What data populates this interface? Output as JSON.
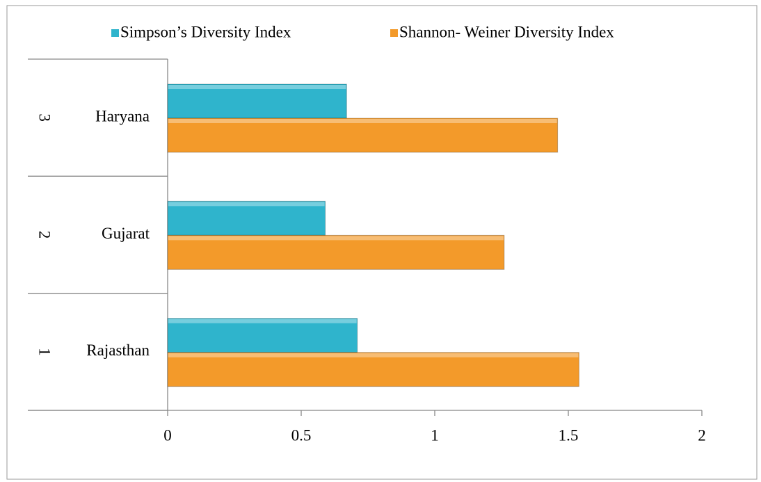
{
  "chart_data": {
    "type": "hbar",
    "category_groups": [
      "1",
      "2",
      "3"
    ],
    "categories": [
      "Rajasthan",
      "Gujarat",
      "Haryana"
    ],
    "series": [
      {
        "name": "Simpson’s Diversity Index",
        "color": "#2fb4cc",
        "values": [
          0.71,
          0.59,
          0.67
        ]
      },
      {
        "name": "Shannon- Weiner Diversity Index",
        "color": "#f39a2a",
        "values": [
          1.54,
          1.26,
          1.46
        ]
      }
    ],
    "xlim": [
      0,
      2
    ],
    "xticks": [
      0,
      0.5,
      1,
      1.5,
      2
    ],
    "grid": false,
    "legend": "top"
  }
}
